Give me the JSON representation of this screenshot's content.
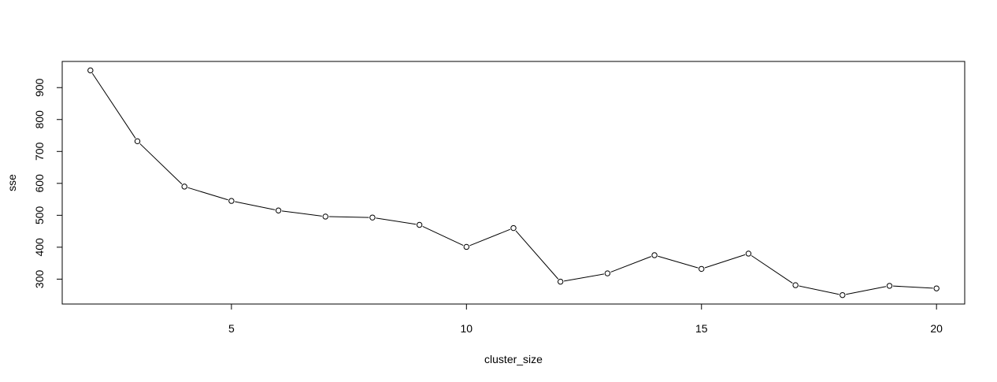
{
  "chart_data": {
    "type": "line",
    "title": "",
    "xlabel": "cluster_size",
    "ylabel": "sse",
    "x": [
      2,
      3,
      4,
      5,
      6,
      7,
      8,
      9,
      10,
      11,
      12,
      13,
      14,
      15,
      16,
      17,
      18,
      19,
      20
    ],
    "series": [
      {
        "values": [
          954,
          732,
          590,
          545,
          515,
          496,
          493,
          470,
          401,
          460,
          292,
          318,
          375,
          332,
          380,
          281,
          250,
          279,
          271
        ]
      }
    ],
    "xlim": [
      1.4,
      20.6
    ],
    "ylim": [
      222,
      982
    ],
    "xticks": [
      5,
      10,
      15,
      20
    ],
    "yticks": [
      300,
      400,
      500,
      600,
      700,
      800,
      900
    ],
    "grid": false,
    "legend": "none",
    "markers": "open-circle",
    "line_color": "#000000"
  }
}
